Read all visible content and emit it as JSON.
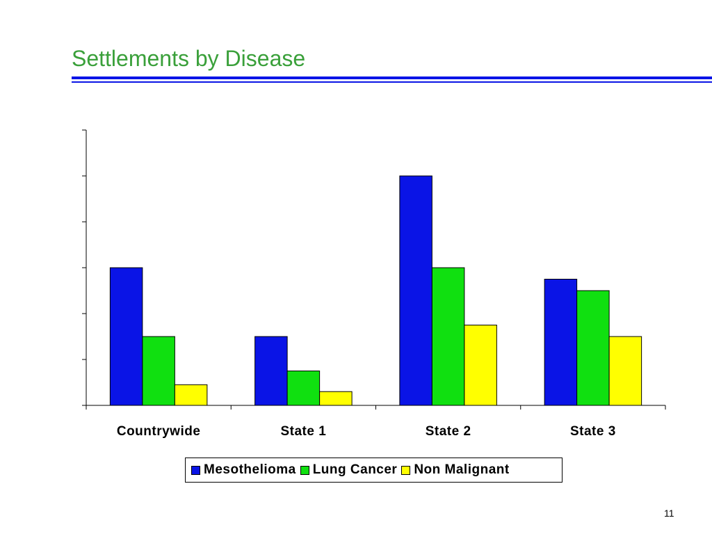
{
  "slide": {
    "title": "Settlements by Disease",
    "page_number": "11"
  },
  "colors": {
    "title": "#3aa03a",
    "rule": "#0a14e6"
  },
  "chart_data": {
    "type": "bar",
    "categories": [
      "Countrywide",
      "State 1",
      "State 2",
      "State 3"
    ],
    "series": [
      {
        "name": "Mesothelioma",
        "color": "#0a14e6",
        "values": [
          3.0,
          1.5,
          5.0,
          2.75
        ]
      },
      {
        "name": "Lung Cancer",
        "color": "#10e010",
        "values": [
          1.5,
          0.75,
          3.0,
          2.5
        ]
      },
      {
        "name": "Non Malignant",
        "color": "#ffff00",
        "values": [
          0.45,
          0.3,
          1.75,
          1.5
        ]
      }
    ],
    "ylim": [
      0,
      6
    ],
    "y_tick_count": 7,
    "y_tick_labels": "none",
    "grid": false,
    "legend": "bottom",
    "title": "",
    "xlabel": "",
    "ylabel": ""
  }
}
